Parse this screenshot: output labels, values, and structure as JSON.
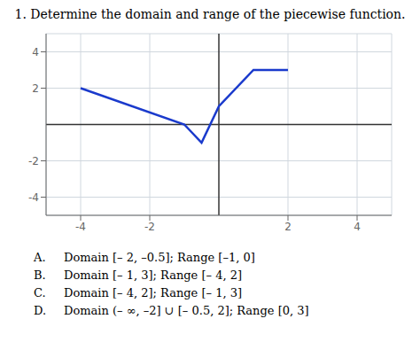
{
  "chart_data": {
    "type": "line",
    "title": "1. Determine the domain and range of the piecewise function.",
    "x": [
      -4,
      -1,
      -0.5,
      0,
      1,
      2
    ],
    "values": [
      2,
      0,
      -1,
      1,
      3,
      3
    ],
    "color": "#1a3acc",
    "xlim": [
      -5,
      5
    ],
    "ylim": [
      -5,
      5
    ],
    "xticks": [
      -4,
      -2,
      2,
      4
    ],
    "yticks": [
      -4,
      -2,
      2,
      4
    ],
    "grid": true,
    "annotations": [
      [
        "A.",
        "Domain [– 2, –0.5]; Range [–1, 0]"
      ],
      [
        "B.",
        "Domain [– 1, 3]; Range [– 4, 2]"
      ],
      [
        "C.",
        "Domain [– 4, 2]; Range [– 1, 3]"
      ],
      [
        "D.",
        "Domain (– ∞, –2] ∪ [– 0.5, 2]; Range [0, 3]"
      ]
    ]
  }
}
